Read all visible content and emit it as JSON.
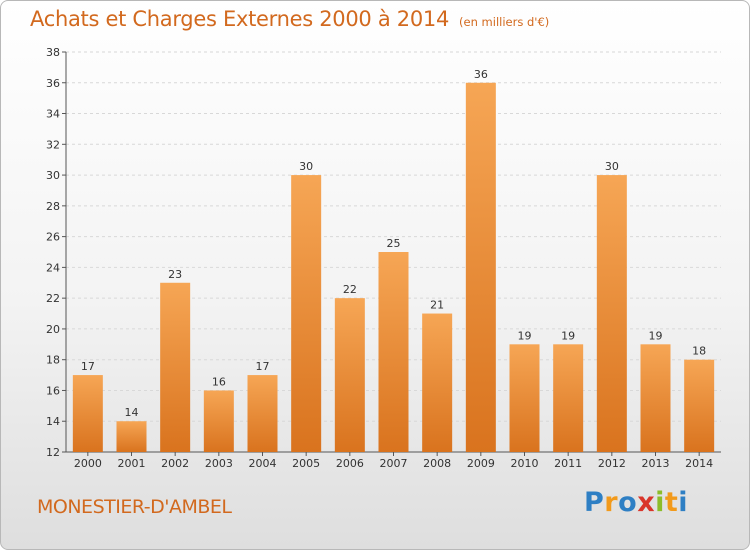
{
  "title": "Achats et Charges Externes 2000 à 2014",
  "unit": "(en milliers d'€)",
  "commune": "MONESTIER-D'AMBEL",
  "brand": {
    "letters": [
      "P",
      "r",
      "o",
      "x",
      "i",
      "t",
      "i"
    ],
    "colors": [
      "#2e7fc4",
      "#f29a1b",
      "#2e7fc4",
      "#d9352a",
      "#8cbd2a",
      "#f29a1b",
      "#2e7fc4"
    ]
  },
  "colors": {
    "title": "#d2691e",
    "bar_light": "#f6a655",
    "bar_dark": "#d9731e"
  },
  "chart_data": {
    "type": "bar",
    "categories": [
      "2000",
      "2001",
      "2002",
      "2003",
      "2004",
      "2005",
      "2006",
      "2007",
      "2008",
      "2009",
      "2010",
      "2011",
      "2012",
      "2013",
      "2014"
    ],
    "values": [
      17,
      14,
      23,
      16,
      17,
      30,
      22,
      25,
      21,
      36,
      19,
      19,
      30,
      19,
      18
    ],
    "ylim": [
      12,
      38
    ],
    "yticks": [
      12,
      14,
      16,
      18,
      20,
      22,
      24,
      26,
      28,
      30,
      32,
      34,
      36,
      38
    ],
    "grid": true,
    "data_labels": true
  }
}
